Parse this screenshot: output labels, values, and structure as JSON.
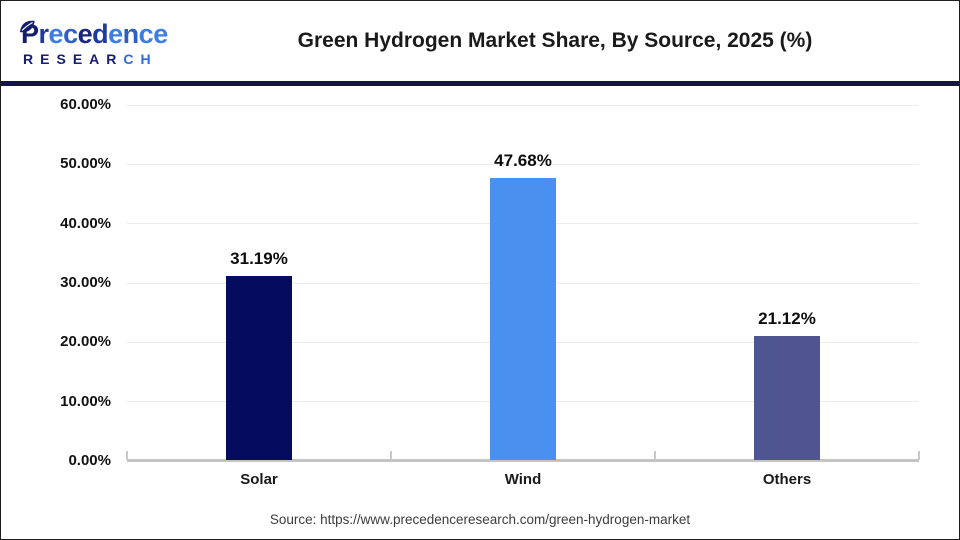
{
  "header": {
    "logo": {
      "brand": "Precedence",
      "brand_letter_colors": [
        "#151e6e",
        "#1e3a9e",
        "#3b7de2",
        "#2e5fc6",
        "#18267e",
        "#1e3a9e",
        "#3b7de2",
        "#2e5fc6",
        "#3b7de2",
        "#3b7de2"
      ],
      "sub": "RESEARCH",
      "sub_letter_colors": [
        "#151e6e",
        "#151e6e",
        "#151e6e",
        "#151e6e",
        "#151e6e",
        "#151e6e",
        "#2e6bd6",
        "#2e6bd6"
      ],
      "leaf_color": "#151e6e"
    }
  },
  "chart_data": {
    "type": "bar",
    "title": "Green Hydrogen Market Share, By Source, 2025 (%)",
    "categories": [
      "Solar",
      "Wind",
      "Others"
    ],
    "values": [
      31.19,
      47.68,
      21.12
    ],
    "value_labels": [
      "31.19%",
      "47.68%",
      "21.12%"
    ],
    "bar_colors": [
      "#050c5e",
      "#4a90ee",
      "#4f5591"
    ],
    "xlabel": "",
    "ylabel": "",
    "ylim": [
      0,
      60
    ],
    "yticks": [
      0,
      10,
      20,
      30,
      40,
      50,
      60
    ],
    "ytick_labels": [
      "0.00%",
      "10.00%",
      "20.00%",
      "30.00%",
      "40.00%",
      "50.00%",
      "60.00%"
    ],
    "grid": true,
    "legend": "none"
  },
  "footer": {
    "source": "Source: https://www.precedenceresearch.com/green-hydrogen-market"
  },
  "colors": {
    "divider": "#14144a",
    "frame_border": "#1e1e1e",
    "gridline": "#ececec",
    "axis": "#c4c4c4",
    "title_text": "#1a1a1a"
  }
}
